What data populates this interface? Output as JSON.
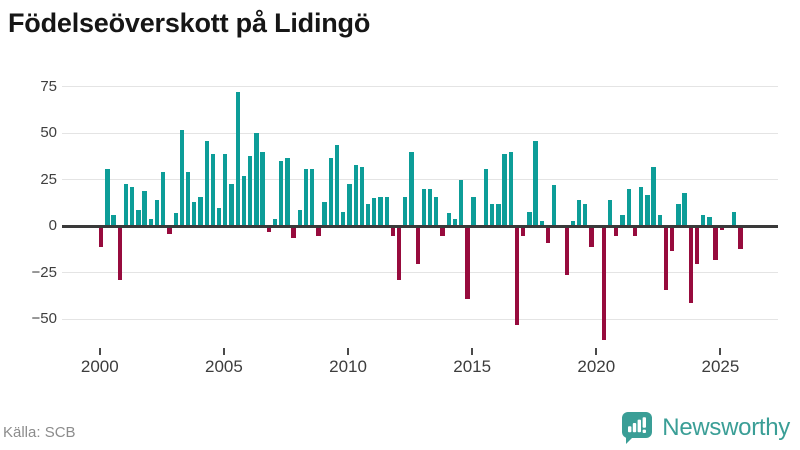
{
  "title": "Födelseöverskott på Lidingö",
  "source": "Källa: SCB",
  "brand": {
    "name": "Newsworthy",
    "color": "#3a9e96"
  },
  "chart_data": {
    "type": "bar",
    "title": "Födelseöverskott på Lidingö",
    "frequency": "quarterly",
    "x_start_year": 2000,
    "values": [
      -11,
      31,
      6,
      -29,
      23,
      21,
      9,
      19,
      4,
      14,
      29,
      -4,
      7,
      52,
      29,
      13,
      16,
      46,
      39,
      10,
      39,
      23,
      72,
      27,
      38,
      50,
      40,
      -3,
      4,
      35,
      37,
      -6,
      9,
      31,
      31,
      -5,
      13,
      37,
      44,
      8,
      23,
      33,
      32,
      12,
      15,
      16,
      16,
      -5,
      -29,
      16,
      40,
      -20,
      20,
      20,
      16,
      -5,
      7,
      4,
      25,
      -39,
      16,
      1,
      31,
      12,
      12,
      39,
      40,
      -53,
      -5,
      8,
      46,
      3,
      -9,
      22,
      1,
      -26,
      3,
      14,
      12,
      -11,
      0,
      -61,
      14,
      -5,
      6,
      20,
      -5,
      21,
      17,
      32,
      6,
      -34,
      -13,
      12,
      18,
      -41,
      -20,
      6,
      5,
      -18,
      -2,
      1,
      8,
      -12
    ],
    "x_tick_labels": [
      "2000",
      "2005",
      "2010",
      "2015",
      "2020",
      "2025"
    ],
    "y_ticks": [
      75,
      50,
      25,
      0,
      -25,
      -50
    ],
    "ylim": [
      -64,
      79
    ],
    "positive_color": "#0d9d98",
    "negative_color": "#970b3d",
    "grid": "horizontal",
    "legend": "none"
  }
}
